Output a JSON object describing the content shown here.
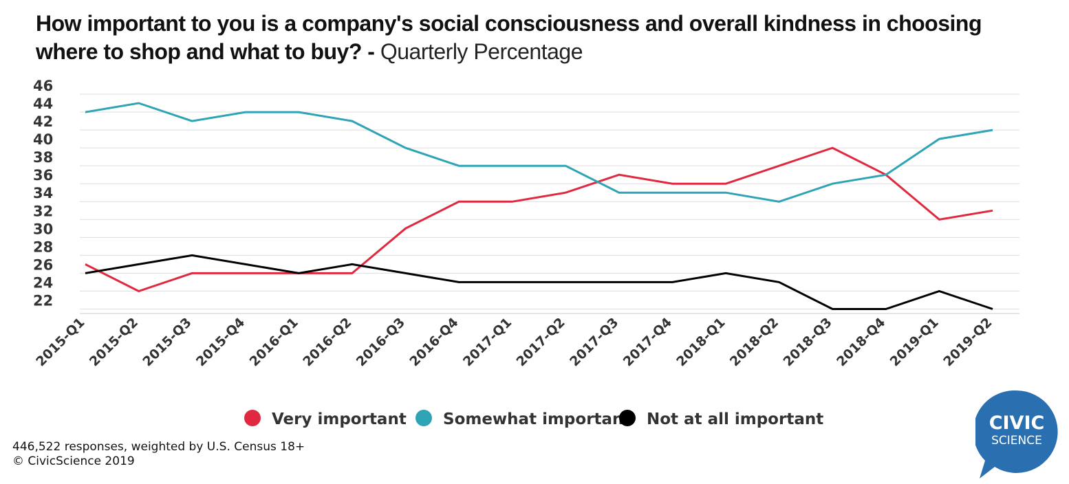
{
  "title": {
    "main": "How important to you is a company's social consciousness and overall kindness in choosing where to shop and what to buy? - ",
    "suffix": "Quarterly Percentage"
  },
  "chart_data": {
    "type": "line",
    "categories": [
      "2015-Q1",
      "2015-Q2",
      "2015-Q3",
      "2015-Q4",
      "2016-Q1",
      "2016-Q2",
      "2016-Q3",
      "2016-Q4",
      "2017-Q1",
      "2017-Q2",
      "2017-Q3",
      "2017-Q4",
      "2018-Q1",
      "2018-Q2",
      "2018-Q3",
      "2018-Q4",
      "2019-Q1",
      "2019-Q2"
    ],
    "series": [
      {
        "name": "Very important",
        "color": "#e0283f",
        "values": [
          26,
          23,
          25,
          25,
          25,
          25,
          30,
          33,
          33,
          34,
          36,
          35,
          35,
          37,
          39,
          36,
          31,
          32
        ]
      },
      {
        "name": "Somewhat important",
        "color": "#2ea4b4",
        "values": [
          43,
          44,
          42,
          43,
          43,
          42,
          39,
          37,
          37,
          37,
          34,
          34,
          34,
          33,
          35,
          36,
          40,
          41
        ]
      },
      {
        "name": "Not at all important",
        "color": "#000000",
        "values": [
          25,
          26,
          27,
          26,
          25,
          26,
          25,
          24,
          24,
          24,
          24,
          24,
          25,
          24,
          21,
          21,
          23,
          21
        ]
      }
    ],
    "yticks": [
      22,
      24,
      26,
      28,
      30,
      32,
      34,
      36,
      38,
      40,
      42,
      44,
      46
    ],
    "ylim": [
      20.5,
      46
    ],
    "grid": true,
    "legend_position": "bottom-center",
    "xlabel": "",
    "ylabel": ""
  },
  "footer": {
    "line1": "446,522 responses, weighted by U.S. Census 18+",
    "line2": "© CivicScience 2019"
  },
  "logo": {
    "line1": "CIVIC",
    "line2": "SCIENCE",
    "color": "#2a6fb0"
  }
}
